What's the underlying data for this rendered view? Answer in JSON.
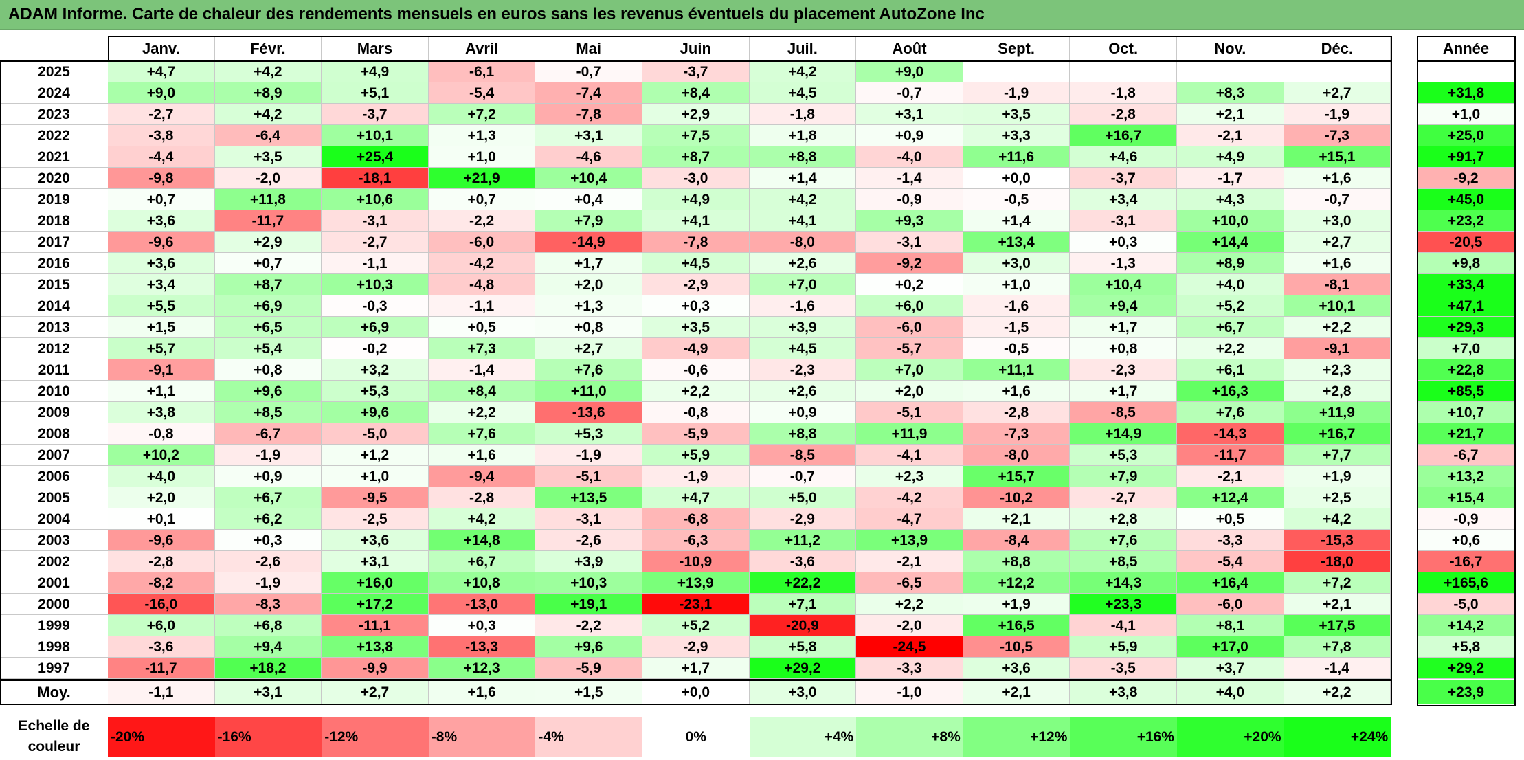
{
  "title": "ADAM Informe. Carte de chaleur des rendements mensuels en euros sans les revenus éventuels du placement AutoZone Inc",
  "chart_data": {
    "type": "heatmap",
    "title": "ADAM Informe. Carte de chaleur des rendements mensuels en euros sans les revenus éventuels du placement AutoZone Inc",
    "columns": [
      "Janv.",
      "Févr.",
      "Mars",
      "Avril",
      "Mai",
      "Juin",
      "Juil.",
      "Août",
      "Sept.",
      "Oct.",
      "Nov.",
      "Déc."
    ],
    "year_column_label": "Année",
    "rows": [
      {
        "year": "2025",
        "months": [
          "+4,7",
          "+4,2",
          "+4,9",
          "-6,1",
          "-0,7",
          "-3,7",
          "+4,2",
          "+9,0",
          "",
          "",
          "",
          ""
        ],
        "annual": ""
      },
      {
        "year": "2024",
        "months": [
          "+9,0",
          "+8,9",
          "+5,1",
          "-5,4",
          "-7,4",
          "+8,4",
          "+4,5",
          "-0,7",
          "-1,9",
          "-1,8",
          "+8,3",
          "+2,7"
        ],
        "annual": "+31,8"
      },
      {
        "year": "2023",
        "months": [
          "-2,7",
          "+4,2",
          "-3,7",
          "+7,2",
          "-7,8",
          "+2,9",
          "-1,8",
          "+3,1",
          "+3,5",
          "-2,8",
          "+2,1",
          "-1,9"
        ],
        "annual": "+1,0"
      },
      {
        "year": "2022",
        "months": [
          "-3,8",
          "-6,4",
          "+10,1",
          "+1,3",
          "+3,1",
          "+7,5",
          "+1,8",
          "+0,9",
          "+3,3",
          "+16,7",
          "-2,1",
          "-7,3"
        ],
        "annual": "+25,0"
      },
      {
        "year": "2021",
        "months": [
          "-4,4",
          "+3,5",
          "+25,4",
          "+1,0",
          "-4,6",
          "+8,7",
          "+8,8",
          "-4,0",
          "+11,6",
          "+4,6",
          "+4,9",
          "+15,1"
        ],
        "annual": "+91,7"
      },
      {
        "year": "2020",
        "months": [
          "-9,8",
          "-2,0",
          "-18,1",
          "+21,9",
          "+10,4",
          "-3,0",
          "+1,4",
          "-1,4",
          "+0,0",
          "-3,7",
          "-1,7",
          "+1,6"
        ],
        "annual": "-9,2"
      },
      {
        "year": "2019",
        "months": [
          "+0,7",
          "+11,8",
          "+10,6",
          "+0,7",
          "+0,4",
          "+4,9",
          "+4,2",
          "-0,9",
          "-0,5",
          "+3,4",
          "+4,3",
          "-0,7"
        ],
        "annual": "+45,0"
      },
      {
        "year": "2018",
        "months": [
          "+3,6",
          "-11,7",
          "-3,1",
          "-2,2",
          "+7,9",
          "+4,1",
          "+4,1",
          "+9,3",
          "+1,4",
          "-3,1",
          "+10,0",
          "+3,0"
        ],
        "annual": "+23,2"
      },
      {
        "year": "2017",
        "months": [
          "-9,6",
          "+2,9",
          "-2,7",
          "-6,0",
          "-14,9",
          "-7,8",
          "-8,0",
          "-3,1",
          "+13,4",
          "+0,3",
          "+14,4",
          "+2,7"
        ],
        "annual": "-20,5"
      },
      {
        "year": "2016",
        "months": [
          "+3,6",
          "+0,7",
          "-1,1",
          "-4,2",
          "+1,7",
          "+4,5",
          "+2,6",
          "-9,2",
          "+3,0",
          "-1,3",
          "+8,9",
          "+1,6"
        ],
        "annual": "+9,8"
      },
      {
        "year": "2015",
        "months": [
          "+3,4",
          "+8,7",
          "+10,3",
          "-4,8",
          "+2,0",
          "-2,9",
          "+7,0",
          "+0,2",
          "+1,0",
          "+10,4",
          "+4,0",
          "-8,1"
        ],
        "annual": "+33,4"
      },
      {
        "year": "2014",
        "months": [
          "+5,5",
          "+6,9",
          "-0,3",
          "-1,1",
          "+1,3",
          "+0,3",
          "-1,6",
          "+6,0",
          "-1,6",
          "+9,4",
          "+5,2",
          "+10,1"
        ],
        "annual": "+47,1"
      },
      {
        "year": "2013",
        "months": [
          "+1,5",
          "+6,5",
          "+6,9",
          "+0,5",
          "+0,8",
          "+3,5",
          "+3,9",
          "-6,0",
          "-1,5",
          "+1,7",
          "+6,7",
          "+2,2"
        ],
        "annual": "+29,3"
      },
      {
        "year": "2012",
        "months": [
          "+5,7",
          "+5,4",
          "-0,2",
          "+7,3",
          "+2,7",
          "-4,9",
          "+4,5",
          "-5,7",
          "-0,5",
          "+0,8",
          "+2,2",
          "-9,1"
        ],
        "annual": "+7,0"
      },
      {
        "year": "2011",
        "months": [
          "-9,1",
          "+0,8",
          "+3,2",
          "-1,4",
          "+7,6",
          "-0,6",
          "-2,3",
          "+7,0",
          "+11,1",
          "-2,3",
          "+6,1",
          "+2,3"
        ],
        "annual": "+22,8"
      },
      {
        "year": "2010",
        "months": [
          "+1,1",
          "+9,6",
          "+5,3",
          "+8,4",
          "+11,0",
          "+2,2",
          "+2,6",
          "+2,0",
          "+1,6",
          "+1,7",
          "+16,3",
          "+2,8"
        ],
        "annual": "+85,5"
      },
      {
        "year": "2009",
        "months": [
          "+3,8",
          "+8,5",
          "+9,6",
          "+2,2",
          "-13,6",
          "-0,8",
          "+0,9",
          "-5,1",
          "-2,8",
          "-8,5",
          "+7,6",
          "+11,9"
        ],
        "annual": "+10,7"
      },
      {
        "year": "2008",
        "months": [
          "-0,8",
          "-6,7",
          "-5,0",
          "+7,6",
          "+5,3",
          "-5,9",
          "+8,8",
          "+11,9",
          "-7,3",
          "+14,9",
          "-14,3",
          "+16,7"
        ],
        "annual": "+21,7"
      },
      {
        "year": "2007",
        "months": [
          "+10,2",
          "-1,9",
          "+1,2",
          "+1,6",
          "-1,9",
          "+5,9",
          "-8,5",
          "-4,1",
          "-8,0",
          "+5,3",
          "-11,7",
          "+7,7"
        ],
        "annual": "-6,7"
      },
      {
        "year": "2006",
        "months": [
          "+4,0",
          "+0,9",
          "+1,0",
          "-9,4",
          "-5,1",
          "-1,9",
          "-0,7",
          "+2,3",
          "+15,7",
          "+7,9",
          "-2,1",
          "+1,9"
        ],
        "annual": "+13,2"
      },
      {
        "year": "2005",
        "months": [
          "+2,0",
          "+6,7",
          "-9,5",
          "-2,8",
          "+13,5",
          "+4,7",
          "+5,0",
          "-4,2",
          "-10,2",
          "-2,7",
          "+12,4",
          "+2,5"
        ],
        "annual": "+15,4"
      },
      {
        "year": "2004",
        "months": [
          "+0,1",
          "+6,2",
          "-2,5",
          "+4,2",
          "-3,1",
          "-6,8",
          "-2,9",
          "-4,7",
          "+2,1",
          "+2,8",
          "+0,5",
          "+4,2"
        ],
        "annual": "-0,9"
      },
      {
        "year": "2003",
        "months": [
          "-9,6",
          "+0,3",
          "+3,6",
          "+14,8",
          "-2,6",
          "-6,3",
          "+11,2",
          "+13,9",
          "-8,4",
          "+7,6",
          "-3,3",
          "-15,3"
        ],
        "annual": "+0,6"
      },
      {
        "year": "2002",
        "months": [
          "-2,8",
          "-2,6",
          "+3,1",
          "+6,7",
          "+3,9",
          "-10,9",
          "-3,6",
          "-2,1",
          "+8,8",
          "+8,5",
          "-5,4",
          "-18,0"
        ],
        "annual": "-16,7"
      },
      {
        "year": "2001",
        "months": [
          "-8,2",
          "-1,9",
          "+16,0",
          "+10,8",
          "+10,3",
          "+13,9",
          "+22,2",
          "-6,5",
          "+12,2",
          "+14,3",
          "+16,4",
          "+7,2"
        ],
        "annual": "+165,6"
      },
      {
        "year": "2000",
        "months": [
          "-16,0",
          "-8,3",
          "+17,2",
          "-13,0",
          "+19,1",
          "-23,1",
          "+7,1",
          "+2,2",
          "+1,9",
          "+23,3",
          "-6,0",
          "+2,1"
        ],
        "annual": "-5,0"
      },
      {
        "year": "1999",
        "months": [
          "+6,0",
          "+6,8",
          "-11,1",
          "+0,3",
          "-2,2",
          "+5,2",
          "-20,9",
          "-2,0",
          "+16,5",
          "-4,1",
          "+8,1",
          "+17,5"
        ],
        "annual": "+14,2"
      },
      {
        "year": "1998",
        "months": [
          "-3,6",
          "+9,4",
          "+13,8",
          "-13,3",
          "+9,6",
          "-2,9",
          "+5,8",
          "-24,5",
          "-10,5",
          "+5,9",
          "+17,0",
          "+7,8"
        ],
        "annual": "+5,8"
      },
      {
        "year": "1997",
        "months": [
          "-11,7",
          "+18,2",
          "-9,9",
          "+12,3",
          "-5,9",
          "+1,7",
          "+29,2",
          "-3,3",
          "+3,6",
          "-3,5",
          "+3,7",
          "-1,4"
        ],
        "annual": "+29,2"
      }
    ],
    "average": {
      "label": "Moy.",
      "months": [
        "-1,1",
        "+3,1",
        "+2,7",
        "+1,6",
        "+1,5",
        "+0,0",
        "+3,0",
        "-1,0",
        "+2,1",
        "+3,8",
        "+4,0",
        "+2,2"
      ],
      "annual": "+23,9"
    },
    "scale": {
      "label_line1": "Echelle de",
      "label_line2": "couleur",
      "steps": [
        "-20%",
        "-16%",
        "-12%",
        "-8%",
        "-4%",
        "0%",
        "+4%",
        "+8%",
        "+12%",
        "+16%",
        "+20%",
        "+24%"
      ]
    },
    "colors": {
      "negative": "#ff0000",
      "neutral": "#ffffff",
      "positive": "#1aff1a",
      "title_bar": "#7cc47a"
    }
  }
}
